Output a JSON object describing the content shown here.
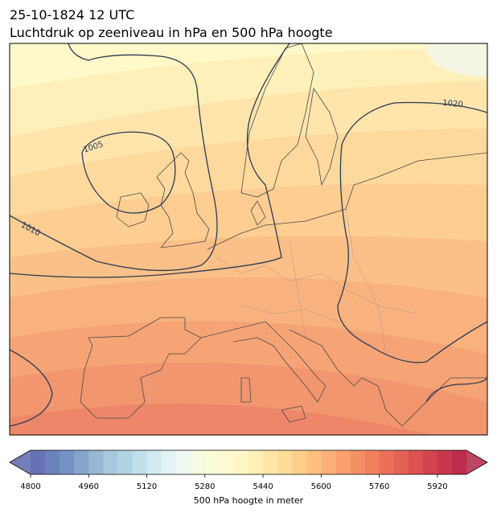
{
  "header": {
    "title": "25-10-1824 12 UTC",
    "subtitle": "Luchtdruk op zeeniveau in hPa en 500 hPa hoogte"
  },
  "contour_labels": [
    "1005",
    "1010",
    "1020"
  ],
  "colorbar": {
    "label": "500 hPa hoogte in meter",
    "lim": [
      4800,
      6000
    ],
    "ticks": [
      4800,
      4960,
      5120,
      5280,
      5440,
      5600,
      5760,
      5920
    ],
    "colors": [
      "#6771b3",
      "#6a83bb",
      "#7492c3",
      "#85a6cc",
      "#98b7d5",
      "#a8c8dd",
      "#b0d4e4",
      "#c0e0ea",
      "#d2eaf1",
      "#e2f2f5",
      "#eef8f3",
      "#f5fae0",
      "#fbfcd8",
      "#fefad0",
      "#fff6c5",
      "#fff0b6",
      "#ffe6a6",
      "#fedb98",
      "#fecd8b",
      "#fdc080",
      "#fbb077",
      "#f9a06d",
      "#f59066",
      "#f2805f",
      "#ec7059",
      "#e46154",
      "#dc5250",
      "#d3444e",
      "#c8384d",
      "#bd2d4b"
    ],
    "under_color": "#5d67ab",
    "over_color": "#b3264a"
  }
}
